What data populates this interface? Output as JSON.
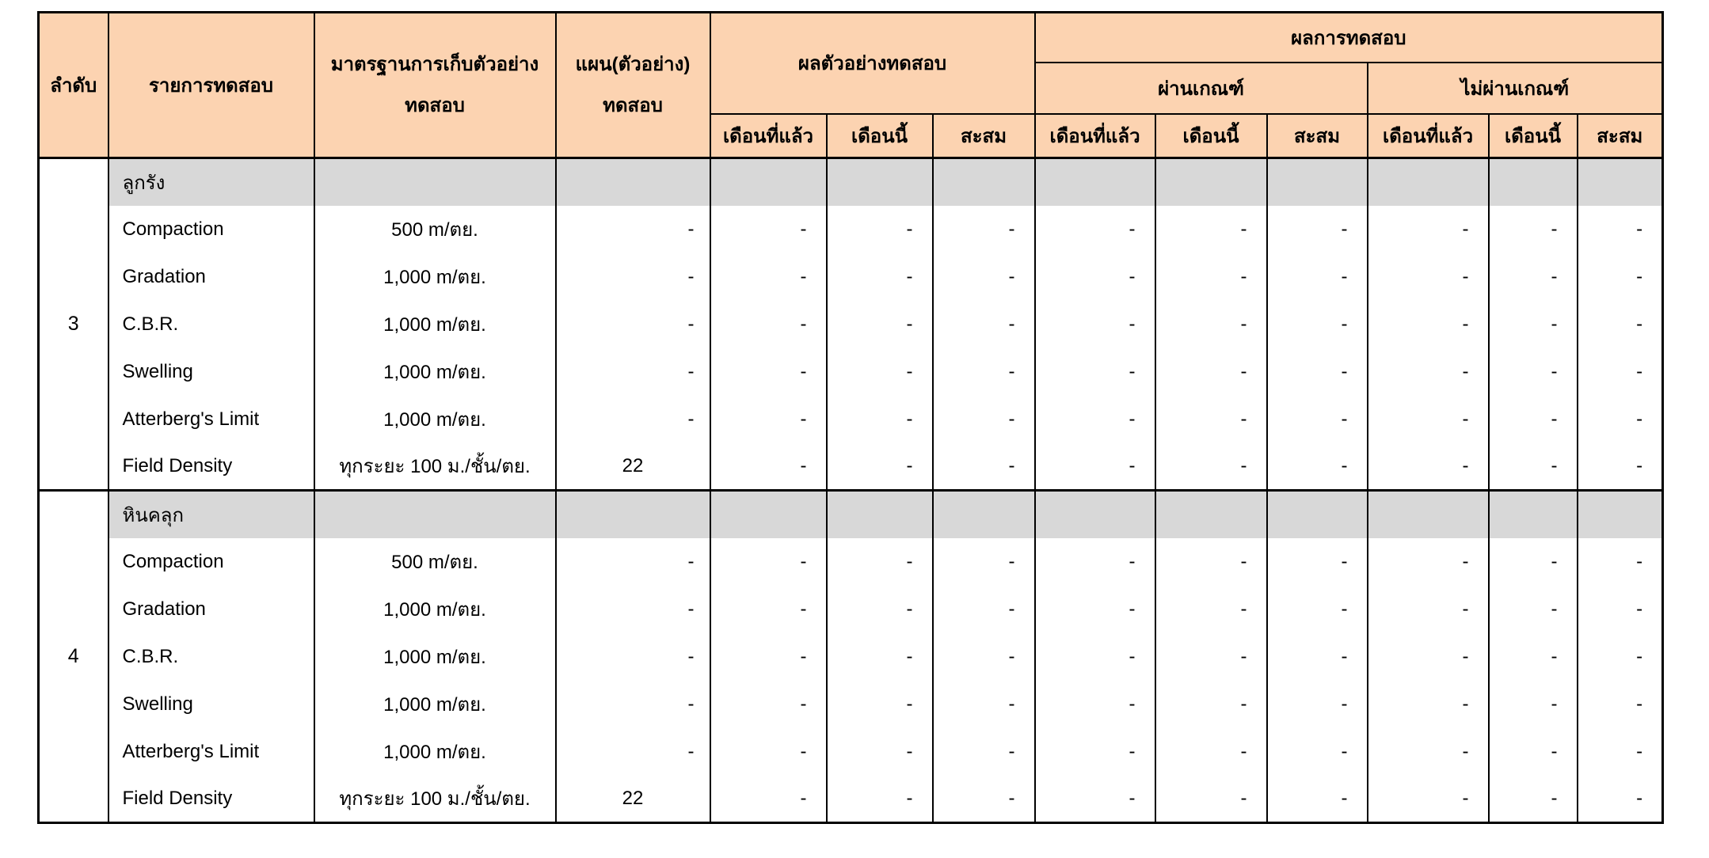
{
  "colors": {
    "header_bg": "#FCD3B1",
    "material_row_bg": "#D8D8D8",
    "border": "#000000",
    "page_bg": "#FFFFFF"
  },
  "table": {
    "header": {
      "order": "ลำดับ",
      "test_item": "รายการทดสอบ",
      "sampling_standard_line1": "มาตรฐานการเก็บตัวอย่าง",
      "sampling_standard_line2": "ทดสอบ",
      "plan_line1": "แผน(ตัวอย่าง)",
      "plan_line2": "ทดสอบ",
      "sample_results": "ผลตัวอย่างทดสอบ",
      "test_results": "ผลการทดสอบ",
      "pass": "ผ่านเกณฑ์",
      "fail": "ไม่ผ่านเกณฑ์",
      "period_cols": [
        "เดือนที่แล้ว",
        "เดือนนี้",
        "สะสม"
      ]
    },
    "groups": [
      {
        "no": "3",
        "material": "ลูกรัง",
        "rows": [
          {
            "test": "Compaction",
            "standard": "500 m/ตย.",
            "plan": "-",
            "results": [
              "-",
              "-",
              "-",
              "-",
              "-",
              "-",
              "-",
              "-",
              "-"
            ]
          },
          {
            "test": "Gradation",
            "standard": "1,000 m/ตย.",
            "plan": "-",
            "results": [
              "-",
              "-",
              "-",
              "-",
              "-",
              "-",
              "-",
              "-",
              "-"
            ]
          },
          {
            "test": "C.B.R.",
            "standard": "1,000 m/ตย.",
            "plan": "-",
            "results": [
              "-",
              "-",
              "-",
              "-",
              "-",
              "-",
              "-",
              "-",
              "-"
            ]
          },
          {
            "test": "Swelling",
            "standard": "1,000 m/ตย.",
            "plan": "-",
            "results": [
              "-",
              "-",
              "-",
              "-",
              "-",
              "-",
              "-",
              "-",
              "-"
            ]
          },
          {
            "test": "Atterberg's Limit",
            "standard": "1,000 m/ตย.",
            "plan": "-",
            "results": [
              "-",
              "-",
              "-",
              "-",
              "-",
              "-",
              "-",
              "-",
              "-"
            ]
          },
          {
            "test": "Field Density",
            "standard": "ทุกระยะ 100 ม./ชั้น/ตย.",
            "plan": "22",
            "results": [
              "-",
              "-",
              "-",
              "-",
              "-",
              "-",
              "-",
              "-",
              "-"
            ]
          }
        ]
      },
      {
        "no": "4",
        "material": "หินคลุก",
        "rows": [
          {
            "test": "Compaction",
            "standard": "500 m/ตย.",
            "plan": "-",
            "results": [
              "-",
              "-",
              "-",
              "-",
              "-",
              "-",
              "-",
              "-",
              "-"
            ]
          },
          {
            "test": "Gradation",
            "standard": "1,000 m/ตย.",
            "plan": "-",
            "results": [
              "-",
              "-",
              "-",
              "-",
              "-",
              "-",
              "-",
              "-",
              "-"
            ]
          },
          {
            "test": "C.B.R.",
            "standard": "1,000 m/ตย.",
            "plan": "-",
            "results": [
              "-",
              "-",
              "-",
              "-",
              "-",
              "-",
              "-",
              "-",
              "-"
            ]
          },
          {
            "test": "Swelling",
            "standard": "1,000 m/ตย.",
            "plan": "-",
            "results": [
              "-",
              "-",
              "-",
              "-",
              "-",
              "-",
              "-",
              "-",
              "-"
            ]
          },
          {
            "test": "Atterberg's Limit",
            "standard": "1,000 m/ตย.",
            "plan": "-",
            "results": [
              "-",
              "-",
              "-",
              "-",
              "-",
              "-",
              "-",
              "-",
              "-"
            ]
          },
          {
            "test": "Field Density",
            "standard": "ทุกระยะ 100 ม./ชั้น/ตย.",
            "plan": "22",
            "results": [
              "-",
              "-",
              "-",
              "-",
              "-",
              "-",
              "-",
              "-",
              "-"
            ]
          }
        ]
      }
    ]
  }
}
